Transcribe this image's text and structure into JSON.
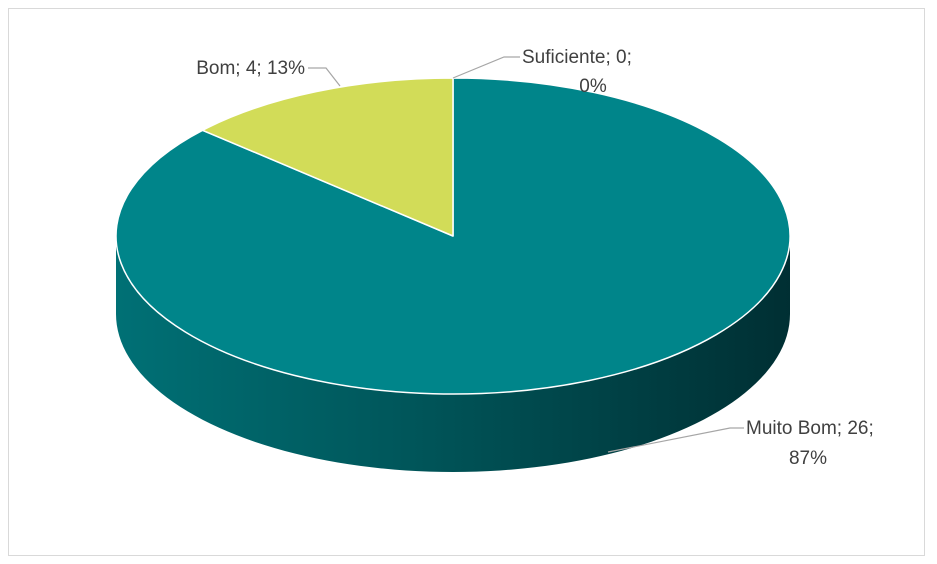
{
  "chart_data": {
    "type": "pie",
    "style": "3d",
    "categories": [
      "Muito Bom",
      "Bom",
      "Suficiente"
    ],
    "values": [
      26,
      4,
      0
    ],
    "percentages": [
      87,
      13,
      0
    ],
    "colors": {
      "Muito Bom": "#00858A",
      "Bom": "#D2DC58",
      "Suficiente": "#4A7A9C"
    },
    "labels": [
      {
        "category": "Muito Bom",
        "lines": [
          "Muito Bom; 26;",
          "87%"
        ]
      },
      {
        "category": "Bom",
        "lines": [
          "Bom; 4; 13%"
        ]
      },
      {
        "category": "Suficiente",
        "lines": [
          "Suficiente; 0;",
          "0%"
        ]
      }
    ],
    "legend": "none",
    "title": ""
  }
}
